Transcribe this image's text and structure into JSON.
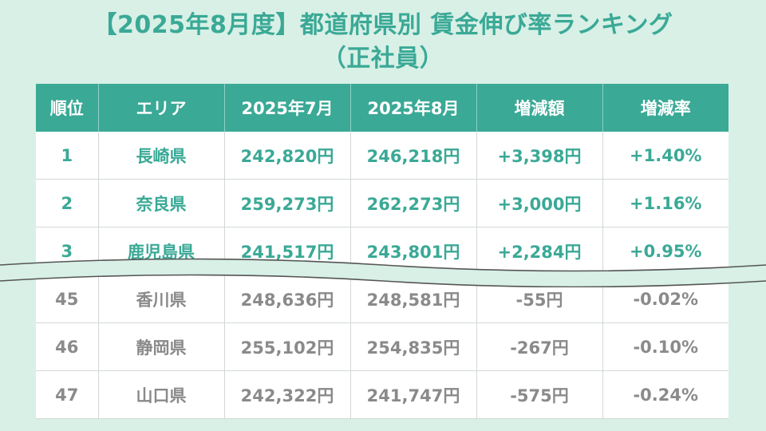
{
  "title": {
    "line1": "【2025年8月度】都道府県別 賃金伸び率ランキング",
    "line2": "（正社員）"
  },
  "table": {
    "headers": [
      "順位",
      "エリア",
      "2025年7月",
      "2025年8月",
      "増減額",
      "増減率"
    ],
    "top_rows": [
      [
        "1",
        "長崎県",
        "242,820円",
        "246,218円",
        "+3,398円",
        "+1.40%"
      ],
      [
        "2",
        "奈良県",
        "259,273円",
        "262,273円",
        "+3,000円",
        "+1.16%"
      ],
      [
        "3",
        "鹿児島県",
        "241,517円",
        "243,801円",
        "+2,284円",
        "+0.95%"
      ]
    ],
    "bottom_rows": [
      [
        "45",
        "香川県",
        "248,636円",
        "248,581円",
        "-55円",
        "-0.02%"
      ],
      [
        "46",
        "静岡県",
        "255,102円",
        "254,835円",
        "-267円",
        "-0.10%"
      ],
      [
        "47",
        "山口県",
        "242,322円",
        "241,747円",
        "-575円",
        "-0.24%"
      ]
    ]
  },
  "colors": {
    "background": "#d8f0e6",
    "accent": "#3aa996",
    "muted_text": "#8a8a8a"
  }
}
